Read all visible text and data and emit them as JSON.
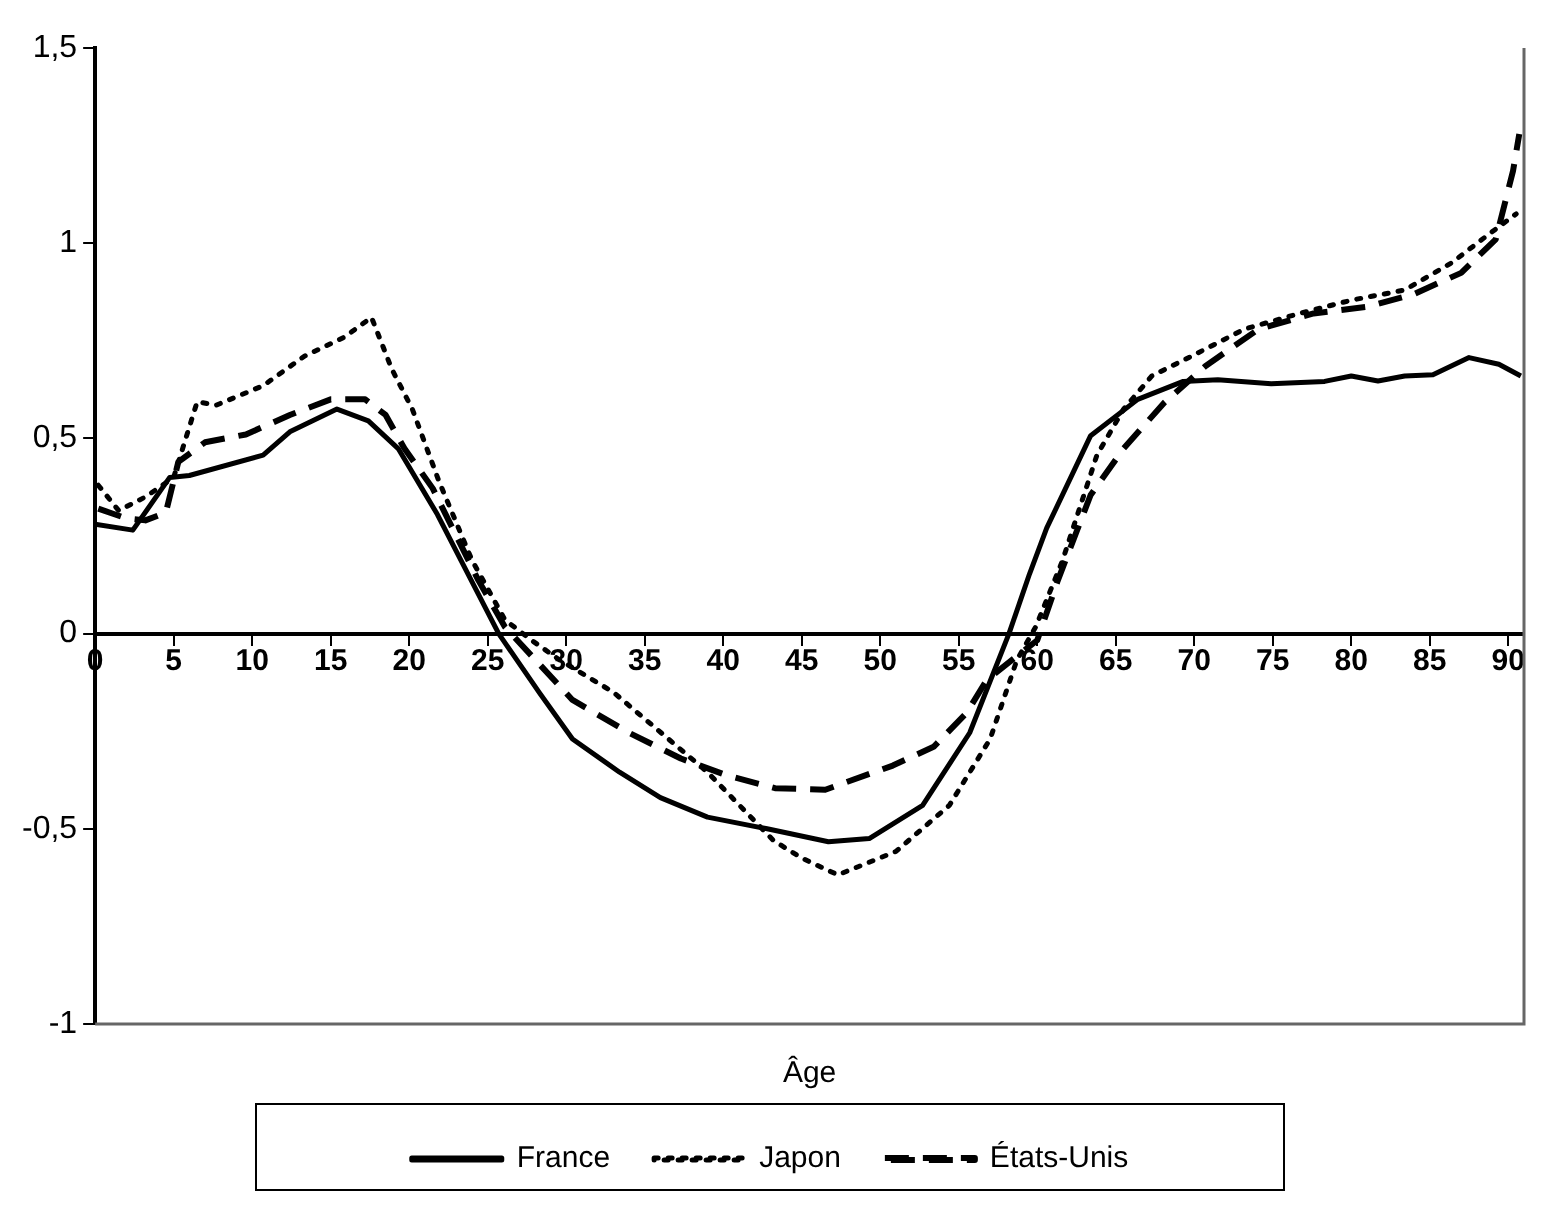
{
  "chart_data": {
    "type": "line",
    "xlabel": "Âge",
    "xlim": [
      0,
      91
    ],
    "xticks": [
      0,
      5,
      10,
      15,
      20,
      25,
      30,
      35,
      40,
      45,
      50,
      55,
      60,
      65,
      70,
      75,
      80,
      85,
      90
    ],
    "ylim": [
      -1,
      1.5
    ],
    "yticks": [
      -1,
      {
        "value": -0.5,
        "label": "-0,5"
      },
      0,
      {
        "value": 0.5,
        "label": "0,5"
      },
      1,
      {
        "value": 1.5,
        "label": "1,5"
      }
    ],
    "legend": "bottom",
    "marker": "none",
    "grid": false,
    "series": [
      {
        "name": "France",
        "color": "#000000",
        "line_style": "solid",
        "x": [
          0,
          2.4,
          4.75,
          6,
          10.7,
          12.4,
          15.4,
          17.4,
          19.3,
          21.8,
          25.7,
          28.3,
          30.4,
          33.4,
          36,
          39,
          42.8,
          46.7,
          49.3,
          52.7,
          55.7,
          58.2,
          59.5,
          60.6,
          63.4,
          66.4,
          69.3,
          71.5,
          74.9,
          78.3,
          80,
          81.7,
          83.4,
          85.2,
          87.5,
          89.4,
          90.8
        ],
        "values": [
          0.28,
          0.265,
          0.4,
          0.405,
          0.457,
          0.517,
          0.575,
          0.545,
          0.474,
          0.305,
          0,
          -0.152,
          -0.27,
          -0.355,
          -0.42,
          -0.47,
          -0.5,
          -0.533,
          -0.525,
          -0.44,
          -0.254,
          0,
          0.152,
          0.27,
          0.507,
          0.6,
          0.646,
          0.65,
          0.64,
          0.646,
          0.66,
          0.647,
          0.66,
          0.663,
          0.707,
          0.69,
          0.66
        ]
      },
      {
        "name": "Japon",
        "color": "#000000",
        "line_style": "dotted",
        "x": [
          0.2,
          1.5,
          3.2,
          5,
          6.5,
          7.7,
          10.7,
          13.3,
          15.9,
          17.6,
          18.9,
          20.2,
          21.9,
          24,
          26.1,
          27.9,
          29.6,
          33,
          39,
          43.2,
          45,
          47.3,
          51,
          54.4,
          57,
          58.7,
          59.9,
          61.6,
          63.8,
          65.5,
          67.3,
          69.8,
          73.2,
          76.7,
          80,
          83.4,
          86.4,
          88.5,
          90.5
        ],
        "values": [
          0.38,
          0.315,
          0.35,
          0.4,
          0.594,
          0.585,
          0.635,
          0.71,
          0.76,
          0.81,
          0.677,
          0.575,
          0.39,
          0.188,
          0.035,
          -0.02,
          -0.068,
          -0.15,
          -0.355,
          -0.53,
          -0.575,
          -0.618,
          -0.558,
          -0.44,
          -0.27,
          -0.068,
          0.017,
          0.186,
          0.457,
          0.575,
          0.66,
          0.71,
          0.78,
          0.82,
          0.854,
          0.88,
          0.95,
          1.015,
          1.075
        ]
      },
      {
        "name": "États-Unis",
        "color": "#000000",
        "line_style": "dashed",
        "x": [
          0.2,
          2,
          3.2,
          4.5,
          5.3,
          7,
          9.6,
          12.4,
          15,
          17.2,
          18.5,
          19.7,
          21.5,
          24.4,
          26.1,
          30.4,
          34,
          37.3,
          40.3,
          43.3,
          46.5,
          50.8,
          53.4,
          55.5,
          56.8,
          60,
          61.3,
          63.4,
          65.5,
          68.1,
          70.7,
          74.1,
          77.6,
          81,
          84,
          87,
          89.2,
          90.3,
          90.7
        ],
        "values": [
          0.32,
          0.295,
          0.29,
          0.31,
          0.44,
          0.49,
          0.51,
          0.56,
          0.6,
          0.6,
          0.56,
          0.474,
          0.372,
          0.137,
          0.017,
          -0.17,
          -0.254,
          -0.32,
          -0.364,
          -0.396,
          -0.4,
          -0.338,
          -0.29,
          -0.203,
          -0.118,
          -0.017,
          0.135,
          0.355,
          0.474,
          0.592,
          0.685,
          0.78,
          0.82,
          0.837,
          0.87,
          0.924,
          1.01,
          1.185,
          1.28
        ]
      }
    ]
  }
}
